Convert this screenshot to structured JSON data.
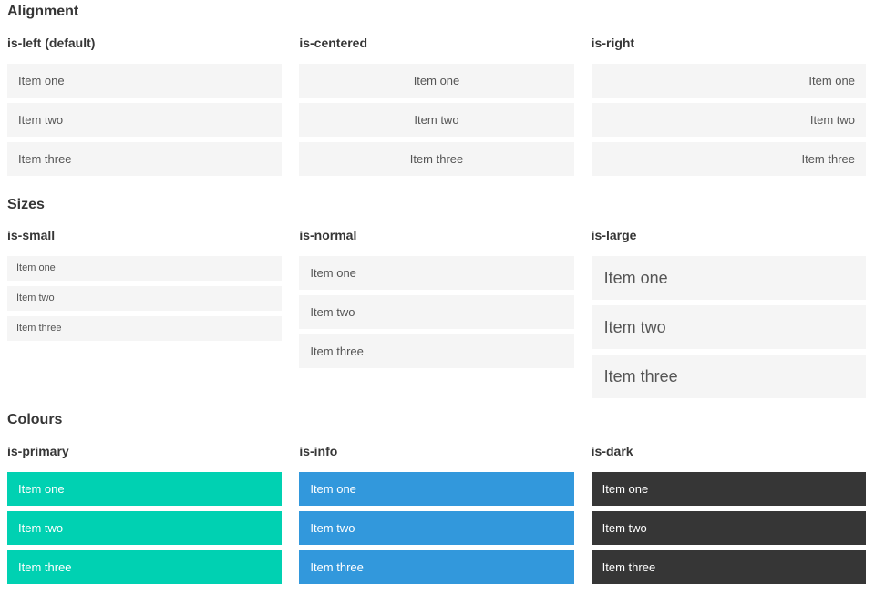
{
  "colors": {
    "primary": "#00d1b2",
    "info": "#3298dc",
    "dark": "#363636",
    "item_bg": "#f5f5f5",
    "item_text": "#555555",
    "heading_text": "#363636",
    "light_text": "#ffffff"
  },
  "sections": [
    {
      "title": "Alignment",
      "columns": [
        {
          "label": "is-left (default)",
          "variant": "left",
          "items": [
            "Item one",
            "Item two",
            "Item three"
          ]
        },
        {
          "label": "is-centered",
          "variant": "centered",
          "items": [
            "Item one",
            "Item two",
            "Item three"
          ]
        },
        {
          "label": "is-right",
          "variant": "right",
          "items": [
            "Item one",
            "Item two",
            "Item three"
          ]
        }
      ]
    },
    {
      "title": "Sizes",
      "columns": [
        {
          "label": "is-small",
          "variant": "small",
          "items": [
            "Item one",
            "Item two",
            "Item three"
          ]
        },
        {
          "label": "is-normal",
          "variant": "normal",
          "items": [
            "Item one",
            "Item two",
            "Item three"
          ]
        },
        {
          "label": "is-large",
          "variant": "large",
          "items": [
            "Item one",
            "Item two",
            "Item three"
          ]
        }
      ]
    },
    {
      "title": "Colours",
      "columns": [
        {
          "label": "is-primary",
          "variant": "primary",
          "items": [
            "Item one",
            "Item two",
            "Item three"
          ]
        },
        {
          "label": "is-info",
          "variant": "info",
          "items": [
            "Item one",
            "Item two",
            "Item three"
          ]
        },
        {
          "label": "is-dark",
          "variant": "dark",
          "items": [
            "Item one",
            "Item two",
            "Item three"
          ]
        }
      ]
    }
  ]
}
